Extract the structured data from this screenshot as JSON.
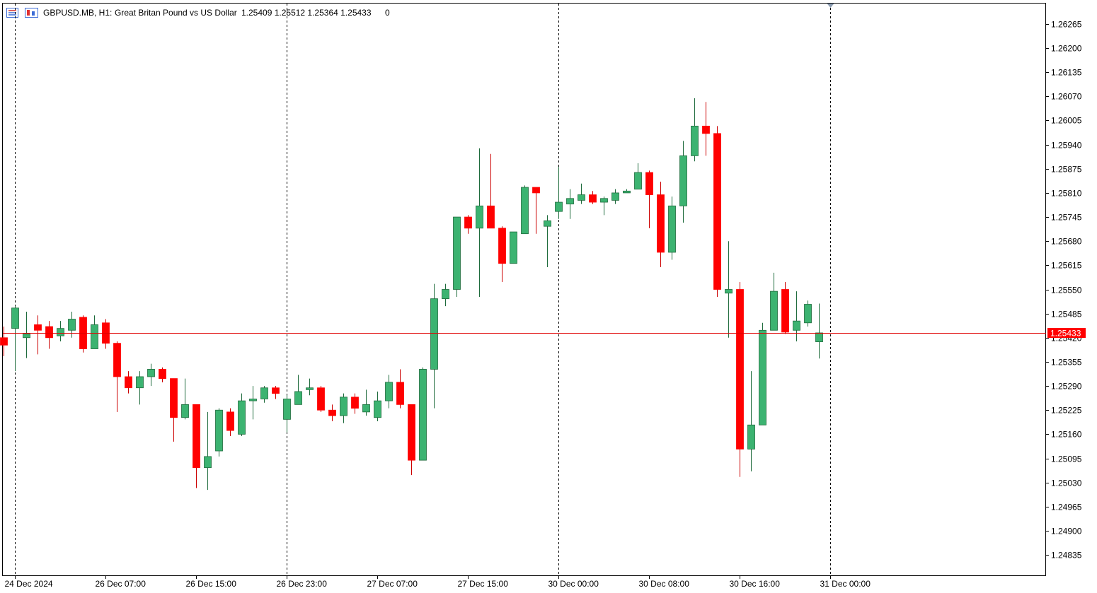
{
  "header": {
    "symbol": "GBPUSD.MB, H1:",
    "description": "Great Britan Pound vs US Dollar",
    "ohlc": "1.25409 1.25512 1.25364 1.25433",
    "volume": "0"
  },
  "colors": {
    "bull": "#3cb371",
    "bear": "#ff0000",
    "bull_border": "#1e6b3c",
    "bear_border": "#cc0000",
    "bid_line": "#e00000",
    "price_tag_bg": "#ff0000",
    "frame": "#000000",
    "separator": "#000000"
  },
  "chart_data": {
    "type": "candlestick",
    "symbol": "GBPUSD.MB",
    "timeframe": "H1",
    "ylim": [
      1.2478,
      1.2632
    ],
    "y_ticks": [
      "1.26265",
      "1.26200",
      "1.26135",
      "1.26070",
      "1.26005",
      "1.25940",
      "1.25875",
      "1.25810",
      "1.25745",
      "1.25680",
      "1.25615",
      "1.25550",
      "1.25485",
      "1.25420",
      "1.25355",
      "1.25290",
      "1.25225",
      "1.25160",
      "1.25095",
      "1.25030",
      "1.24965",
      "1.24900",
      "1.24835"
    ],
    "x_ticks": [
      {
        "label": "24 Dec 2024",
        "index": 1
      },
      {
        "label": "26 Dec 07:00",
        "index": 9
      },
      {
        "label": "26 Dec 15:00",
        "index": 17
      },
      {
        "label": "26 Dec 23:00",
        "index": 25
      },
      {
        "label": "27 Dec 07:00",
        "index": 33
      },
      {
        "label": "27 Dec 15:00",
        "index": 41
      },
      {
        "label": "30 Dec 00:00",
        "index": 49
      },
      {
        "label": "30 Dec 08:00",
        "index": 57
      },
      {
        "label": "30 Dec 16:00",
        "index": 65
      },
      {
        "label": "31 Dec 00:00",
        "index": 73
      }
    ],
    "day_separators": [
      1,
      25,
      49,
      73
    ],
    "current_price": "1.25433",
    "candles": [
      [
        1.2542,
        1.2545,
        1.2537,
        1.254
      ],
      [
        1.25445,
        1.25505,
        1.2533,
        1.255
      ],
      [
        1.2542,
        1.2549,
        1.25365,
        1.2543
      ],
      [
        1.25455,
        1.2548,
        1.25375,
        1.2544
      ],
      [
        1.2545,
        1.25465,
        1.2539,
        1.2542
      ],
      [
        1.25425,
        1.25465,
        1.2541,
        1.25445
      ],
      [
        1.2544,
        1.2549,
        1.2542,
        1.2547
      ],
      [
        1.25475,
        1.2548,
        1.2538,
        1.2539
      ],
      [
        1.2539,
        1.2548,
        1.2539,
        1.25455
      ],
      [
        1.2546,
        1.2547,
        1.2539,
        1.25405
      ],
      [
        1.25405,
        1.2541,
        1.2522,
        1.25315
      ],
      [
        1.25315,
        1.2533,
        1.2527,
        1.25285
      ],
      [
        1.25285,
        1.2533,
        1.2524,
        1.25315
      ],
      [
        1.25315,
        1.2535,
        1.2529,
        1.25335
      ],
      [
        1.25335,
        1.2534,
        1.253,
        1.2531
      ],
      [
        1.2531,
        1.2531,
        1.2514,
        1.25205
      ],
      [
        1.25205,
        1.2531,
        1.252,
        1.2524
      ],
      [
        1.2524,
        1.2524,
        1.25015,
        1.2507
      ],
      [
        1.2507,
        1.2522,
        1.2501,
        1.251
      ],
      [
        1.25115,
        1.2523,
        1.251,
        1.25225
      ],
      [
        1.2522,
        1.2523,
        1.25155,
        1.2517
      ],
      [
        1.2516,
        1.2527,
        1.25155,
        1.2525
      ],
      [
        1.2525,
        1.2529,
        1.252,
        1.25255
      ],
      [
        1.25255,
        1.2529,
        1.25245,
        1.25285
      ],
      [
        1.25285,
        1.2529,
        1.25255,
        1.2527
      ],
      [
        1.252,
        1.25265,
        1.25165,
        1.25255
      ],
      [
        1.2524,
        1.2532,
        1.2524,
        1.25275
      ],
      [
        1.2528,
        1.2531,
        1.25265,
        1.25285
      ],
      [
        1.25285,
        1.2529,
        1.2522,
        1.25225
      ],
      [
        1.25225,
        1.2524,
        1.25195,
        1.2521
      ],
      [
        1.2521,
        1.2527,
        1.2519,
        1.2526
      ],
      [
        1.2526,
        1.2527,
        1.25215,
        1.2523
      ],
      [
        1.2522,
        1.2528,
        1.2521,
        1.2524
      ],
      [
        1.25205,
        1.25275,
        1.25195,
        1.2525
      ],
      [
        1.2525,
        1.2532,
        1.2523,
        1.253
      ],
      [
        1.253,
        1.25335,
        1.2523,
        1.2524
      ],
      [
        1.2524,
        1.2524,
        1.2505,
        1.2509
      ],
      [
        1.2509,
        1.2534,
        1.2509,
        1.25335
      ],
      [
        1.25335,
        1.25565,
        1.2523,
        1.25525
      ],
      [
        1.25525,
        1.25565,
        1.25505,
        1.2555
      ],
      [
        1.2555,
        1.2574,
        1.2553,
        1.25745
      ],
      [
        1.25745,
        1.2575,
        1.257,
        1.25715
      ],
      [
        1.25715,
        1.2593,
        1.2553,
        1.25775
      ],
      [
        1.25775,
        1.25915,
        1.2573,
        1.25715
      ],
      [
        1.25715,
        1.2572,
        1.2557,
        1.2562
      ],
      [
        1.2562,
        1.25705,
        1.2562,
        1.25705
      ],
      [
        1.257,
        1.2583,
        1.257,
        1.25825
      ],
      [
        1.25825,
        1.25825,
        1.257,
        1.2581
      ],
      [
        1.2572,
        1.2575,
        1.2561,
        1.25735
      ],
      [
        1.2576,
        1.2588,
        1.2574,
        1.25785
      ],
      [
        1.2578,
        1.2582,
        1.2574,
        1.25795
      ],
      [
        1.2579,
        1.25835,
        1.2578,
        1.25805
      ],
      [
        1.25805,
        1.25815,
        1.2578,
        1.25785
      ],
      [
        1.25785,
        1.258,
        1.2575,
        1.25795
      ],
      [
        1.2579,
        1.2582,
        1.2578,
        1.2581
      ],
      [
        1.2581,
        1.2582,
        1.2581,
        1.25815
      ],
      [
        1.2582,
        1.2589,
        1.2582,
        1.25865
      ],
      [
        1.25865,
        1.2587,
        1.25715,
        1.25805
      ],
      [
        1.25805,
        1.2584,
        1.2561,
        1.2565
      ],
      [
        1.2565,
        1.258,
        1.2563,
        1.25775
      ],
      [
        1.25775,
        1.2595,
        1.2573,
        1.2591
      ],
      [
        1.2591,
        1.26065,
        1.25895,
        1.2599
      ],
      [
        1.2599,
        1.26055,
        1.2591,
        1.2597
      ],
      [
        1.2597,
        1.2599,
        1.2553,
        1.2555
      ],
      [
        1.2554,
        1.2568,
        1.2542,
        1.2555
      ],
      [
        1.2555,
        1.2557,
        1.25045,
        1.2512
      ],
      [
        1.2512,
        1.2533,
        1.2506,
        1.25185
      ],
      [
        1.25185,
        1.2546,
        1.25185,
        1.2544
      ],
      [
        1.2544,
        1.25595,
        1.2544,
        1.25545
      ],
      [
        1.2555,
        1.2557,
        1.2543,
        1.25435
      ],
      [
        1.2544,
        1.25545,
        1.2541,
        1.25465
      ],
      [
        1.2546,
        1.2552,
        1.2545,
        1.2551
      ],
      [
        1.25409,
        1.25512,
        1.25364,
        1.25433
      ]
    ]
  }
}
